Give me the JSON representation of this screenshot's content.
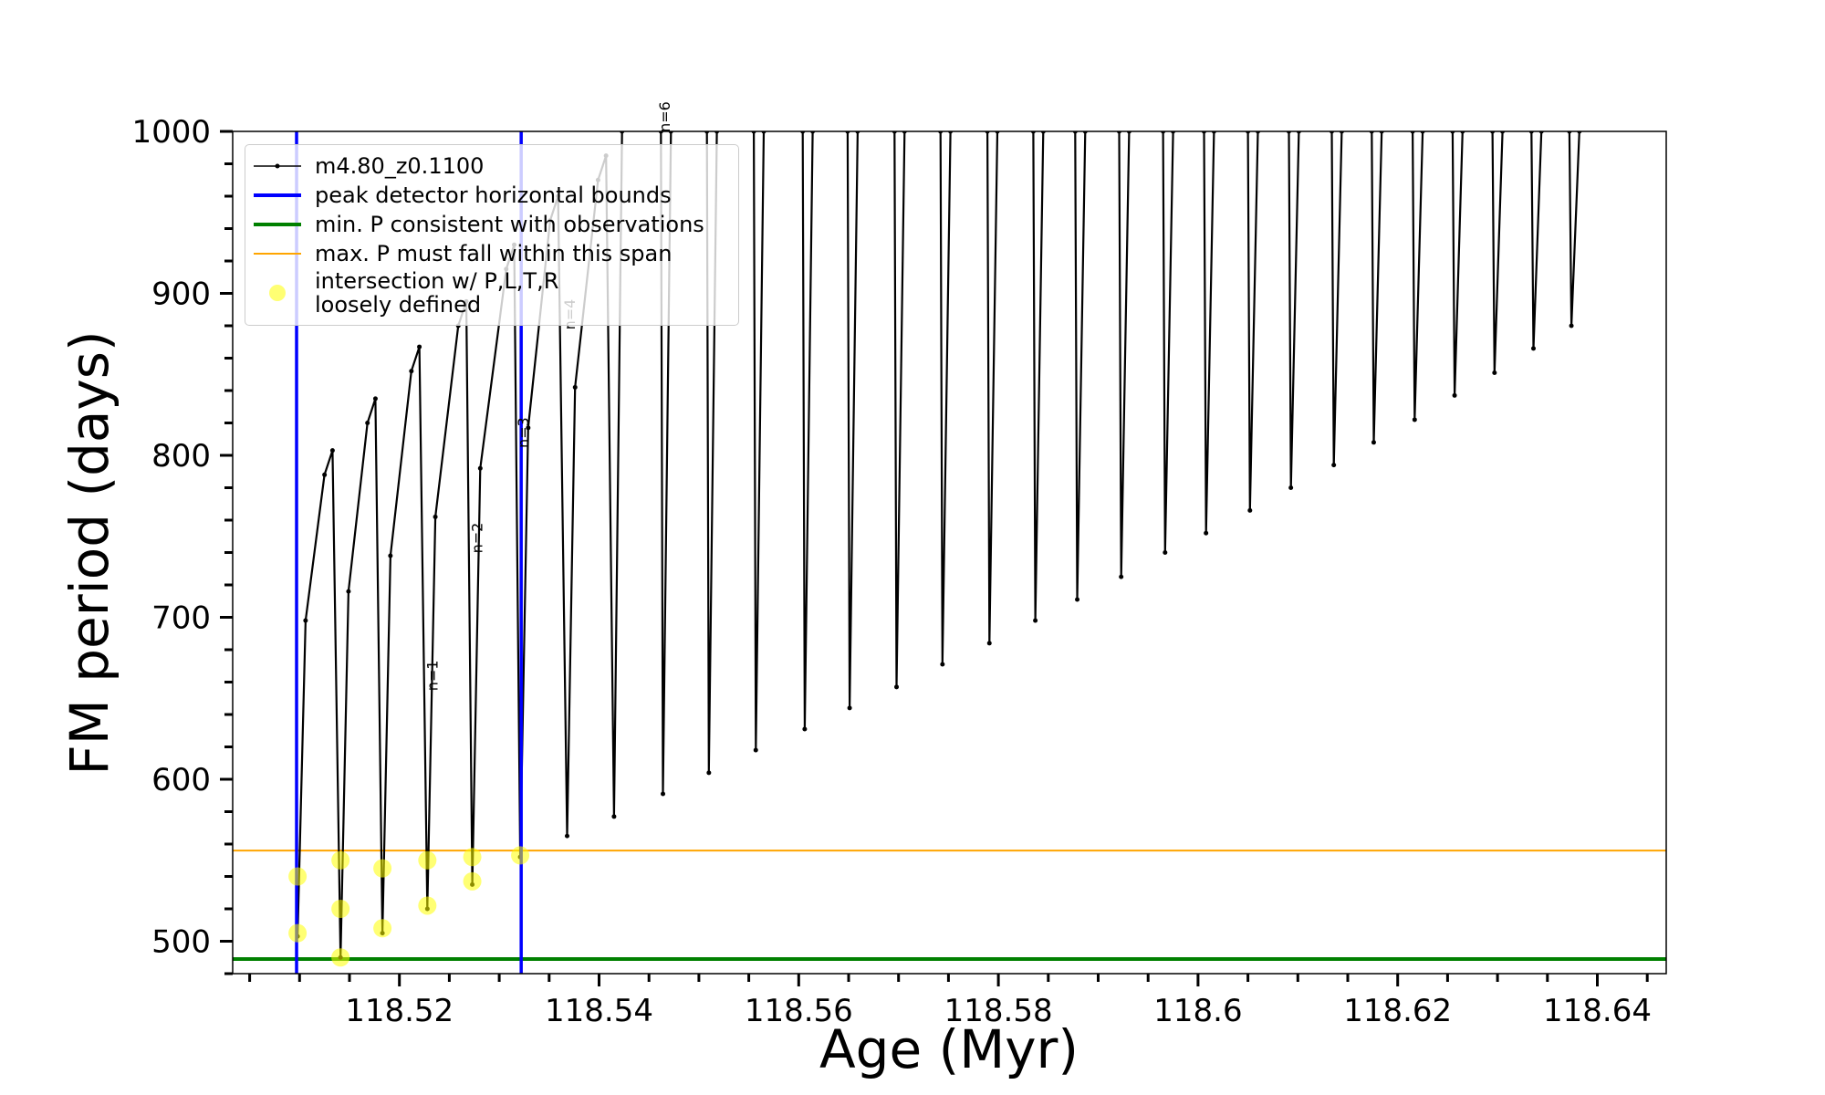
{
  "chart_data": {
    "type": "line",
    "xlabel": "Age (Myr)",
    "ylabel": "FM period (days)",
    "xlim": [
      118.5033,
      118.6469
    ],
    "ylim": [
      480,
      1000
    ],
    "xticks": [
      118.52,
      118.54,
      118.56,
      118.58,
      118.6,
      118.62,
      118.64
    ],
    "yticks": [
      500,
      600,
      700,
      800,
      900,
      1000
    ],
    "xminorticks": [
      118.505,
      118.51,
      118.515,
      118.525,
      118.53,
      118.535,
      118.545,
      118.55,
      118.555,
      118.565,
      118.57,
      118.575,
      118.585,
      118.59,
      118.595,
      118.605,
      118.61,
      118.615,
      118.625,
      118.63,
      118.635,
      118.645
    ],
    "yminorticks": [
      480,
      520,
      540,
      560,
      580,
      620,
      640,
      660,
      680,
      720,
      740,
      760,
      780,
      820,
      840,
      860,
      880,
      920,
      940,
      960,
      980
    ],
    "legend": "upper left",
    "series": [
      {
        "name": "m4.80_z0.1100",
        "color": "#000000",
        "kind": "line",
        "x": [
          118.5098,
          118.5106,
          118.5125,
          118.5133,
          118.5141,
          118.5149,
          118.5168,
          118.5176,
          118.5183,
          118.5191,
          118.5212,
          118.522,
          118.5228,
          118.5236,
          118.5259,
          118.5267,
          118.5273,
          118.5281,
          118.5307,
          118.5315,
          118.5321,
          118.5329,
          118.5351,
          118.5359,
          118.5368,
          118.5376,
          118.5399,
          118.5407,
          118.5415,
          118.5423,
          null,
          118.5462,
          118.5464,
          118.5472,
          null,
          118.5508,
          118.551,
          118.5518,
          null,
          118.5555,
          118.5557,
          118.5565,
          null,
          118.5604,
          118.5606,
          118.5614,
          null,
          118.5649,
          118.5651,
          118.5659,
          null,
          118.5696,
          118.5698,
          118.5706,
          null,
          118.5742,
          118.5744,
          118.5752,
          null,
          118.5789,
          118.5791,
          118.5799,
          null,
          118.5835,
          118.5837,
          118.5845,
          null,
          118.5877,
          118.5879,
          118.5887,
          null,
          118.5921,
          118.5923,
          118.5931,
          null,
          118.5965,
          118.5967,
          118.5975,
          null,
          118.6006,
          118.6008,
          118.6016,
          null,
          118.605,
          118.6052,
          118.606,
          null,
          118.6091,
          118.6093,
          118.6101,
          null,
          118.6134,
          118.6136,
          118.6144,
          null,
          118.6174,
          118.6176,
          118.6184,
          null,
          118.6215,
          118.6217,
          118.6225,
          null,
          118.6255,
          118.6257,
          118.6265,
          null,
          118.6295,
          118.6297,
          118.6305,
          null,
          118.6334,
          118.6336,
          118.6344,
          null,
          118.6372,
          118.6374,
          118.6382
        ],
        "values": [
          503,
          698,
          788,
          803,
          490,
          716,
          820,
          835,
          505,
          738,
          852,
          867,
          520,
          762,
          880,
          895,
          535,
          792,
          915,
          930,
          552,
          817,
          945,
          960,
          565,
          842,
          970,
          985,
          577,
          1000,
          null,
          1000,
          591,
          1000,
          null,
          1000,
          604,
          1000,
          null,
          1000,
          618,
          1000,
          null,
          1000,
          631,
          1000,
          null,
          1000,
          644,
          1000,
          null,
          1000,
          657,
          1000,
          null,
          1000,
          671,
          1000,
          null,
          1000,
          684,
          1000,
          null,
          1000,
          698,
          1000,
          null,
          1000,
          711,
          1000,
          null,
          1000,
          725,
          1000,
          null,
          1000,
          740,
          1000,
          null,
          1000,
          752,
          1000,
          null,
          1000,
          766,
          1000,
          null,
          1000,
          780,
          1000,
          null,
          1000,
          794,
          1000,
          null,
          1000,
          808,
          1000,
          null,
          1000,
          822,
          1000,
          null,
          1000,
          837,
          1000,
          null,
          1000,
          851,
          1000,
          null,
          1000,
          866,
          1000,
          null,
          1000,
          880,
          1000
        ]
      },
      {
        "name": "peak detector horizontal bounds",
        "color": "#0000ff",
        "kind": "vline",
        "x": [
          118.5097,
          118.5322
        ]
      },
      {
        "name": "min. P consistent with observations",
        "color": "#008000",
        "kind": "hline",
        "values": [
          489
        ]
      },
      {
        "name": "max. P must fall within this span",
        "color": "#ffa500",
        "kind": "hline",
        "values": [
          556
        ]
      },
      {
        "name": "intersection w/ P,L,T,R\nloosely defined",
        "color": "#ffff00",
        "kind": "scatter",
        "x": [
          118.5098,
          118.5098,
          118.5141,
          118.5141,
          118.5141,
          118.5183,
          118.5183,
          118.5228,
          118.5228,
          118.5273,
          118.5273,
          118.5321
        ],
        "values": [
          505,
          540,
          490,
          520,
          550,
          508,
          545,
          522,
          550,
          537,
          552,
          553
        ]
      }
    ],
    "annotations": [
      {
        "text": "n=1",
        "x": 118.5238,
        "y": 664
      },
      {
        "text": "n=2",
        "x": 118.5283,
        "y": 749
      },
      {
        "text": "n=3",
        "x": 118.5329,
        "y": 814
      },
      {
        "text": "n=4",
        "x": 118.5376,
        "y": 887
      },
      {
        "text": "n=6",
        "x": 118.5471,
        "y": 1009
      }
    ]
  }
}
